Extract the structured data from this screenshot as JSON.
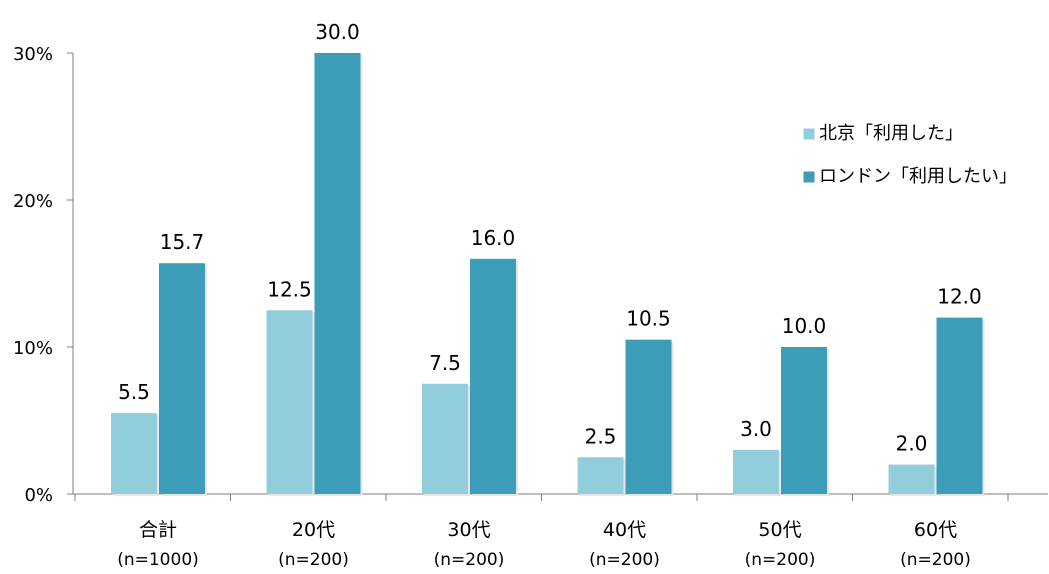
{
  "chart_data": {
    "type": "bar",
    "categories": [
      "合計",
      "20代",
      "30代",
      "40代",
      "50代",
      "60代"
    ],
    "category_sublabels": [
      "(n=1000)",
      "(n=200)",
      "(n=200)",
      "(n=200)",
      "(n=200)",
      "(n=200)"
    ],
    "series": [
      {
        "name": "北京「利用した」",
        "values": [
          5.5,
          12.5,
          7.5,
          2.5,
          3.0,
          2.0
        ],
        "labels": [
          "5.5",
          "12.5",
          "7.5",
          "2.5",
          "3.0",
          "2.0"
        ],
        "color": "#92cddc"
      },
      {
        "name": "ロンドン「利用したい」",
        "values": [
          15.7,
          30.0,
          16.0,
          10.5,
          10.0,
          12.0
        ],
        "labels": [
          "15.7",
          "30.0",
          "16.0",
          "10.5",
          "10.0",
          "12.0"
        ],
        "color": "#3c9db8"
      }
    ],
    "ylim": [
      0,
      30
    ],
    "yticks": [
      0,
      10,
      20,
      30
    ],
    "ytick_labels": [
      "0%",
      "10%",
      "20%",
      "30%"
    ],
    "legend": "top-right",
    "grid": false
  }
}
